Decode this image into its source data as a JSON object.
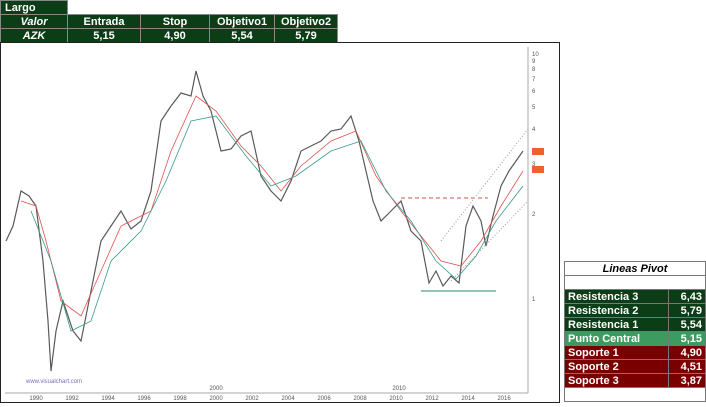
{
  "signal_table": {
    "title": "Largo",
    "headers": [
      "Valor",
      "Entrada",
      "Stop",
      "Objetivo1",
      "Objetivo2"
    ],
    "row": [
      "AZK",
      "5,15",
      "4,90",
      "5,54",
      "5,79"
    ]
  },
  "pivot_table": {
    "title": "Lineas Pivot",
    "rows": [
      [
        "Resistencia 3",
        "6,43"
      ],
      [
        "Resistencia 2",
        "5,79"
      ],
      [
        "Resistencia 1",
        "5,54"
      ],
      [
        "Punto Central",
        "5,15"
      ],
      [
        "Soporte 1",
        "4,90"
      ],
      [
        "Soporte 2",
        "4,51"
      ],
      [
        "Soporte 3",
        "3,87"
      ]
    ]
  },
  "chart": {
    "watermark": "www.visualchart.com",
    "x_labels": [
      "1990",
      "1992",
      "1994",
      "1996",
      "1998",
      "2000",
      "2002",
      "2004",
      "2006",
      "2008",
      "2010",
      "2012",
      "2014",
      "2016"
    ],
    "decade_labels": [
      "2000",
      "2010"
    ],
    "y_labels": [
      "10",
      "9",
      "8",
      "7",
      "6",
      "5",
      "4",
      "3",
      "2",
      "1"
    ]
  }
}
